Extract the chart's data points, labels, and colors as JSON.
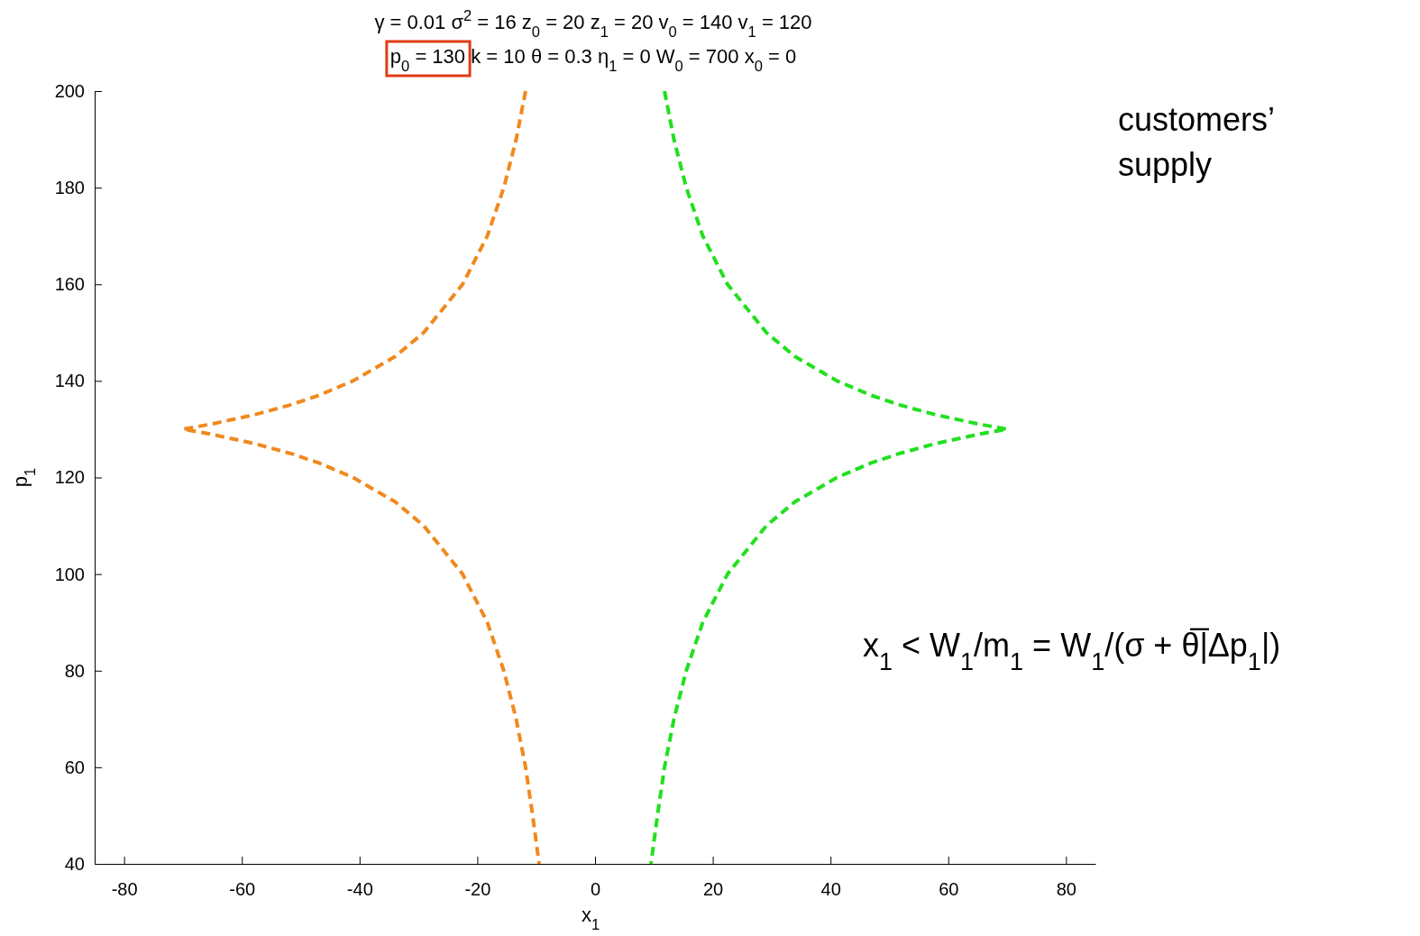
{
  "chart_data": {
    "type": "line",
    "title": "γ = 0.01  σ$^{2}$ = 16  z$_{0}$ = 20  z$_{1}$ = 20  v$_{0}$ = 140  v$_{1}$ = 120",
    "subtitle": "p$_{0}$ = 130  k = 10  θ = 0.3  η$_{1}$ = 0  W$_{0}$ = 700  x$_{0}$ = 0",
    "xlabel": "x$_{1}$",
    "ylabel": "p$_{1}$",
    "annotations": [
      "customers’\nsupply",
      "x$_{1}$ < W$_{1}$/m$_{1}$ = W$_{1}$/(σ + θ̅|Δp$_{1}$|)"
    ],
    "series": [
      {
        "color": "#f0891e",
        "x": [
          -11.8,
          -13.4,
          -15.5,
          -18.3,
          -22.5,
          -29.1,
          -34.0,
          -41.1,
          -46.9,
          -51.8,
          -57.8,
          -65.4,
          -70,
          -65.4,
          -57.8,
          -51.8,
          -46.9,
          -41.1,
          -34.0,
          -29.1,
          -22.5,
          -18.3,
          -15.5,
          -13.4,
          -11.8,
          -10.6,
          -9.5
        ],
        "values": [
          200,
          190,
          180,
          170,
          160,
          150,
          145,
          140,
          137,
          135,
          133,
          131,
          130,
          129,
          127,
          125,
          123,
          120,
          115,
          110,
          100,
          90,
          80,
          70,
          60,
          50,
          40
        ]
      },
      {
        "color": "#22e01e",
        "x": [
          11.8,
          13.4,
          15.5,
          18.3,
          22.5,
          29.1,
          34.0,
          41.1,
          46.9,
          51.8,
          57.8,
          65.4,
          70,
          65.4,
          57.8,
          51.8,
          46.9,
          41.1,
          34.0,
          29.1,
          22.5,
          18.3,
          15.5,
          13.4,
          11.8,
          10.6,
          9.5
        ],
        "values": [
          200,
          190,
          180,
          170,
          160,
          150,
          145,
          140,
          137,
          135,
          133,
          131,
          130,
          129,
          127,
          125,
          123,
          120,
          115,
          110,
          100,
          90,
          80,
          70,
          60,
          50,
          40
        ]
      }
    ],
    "xlim": [
      -85,
      85
    ],
    "xticks": [
      -80,
      -60,
      -40,
      -20,
      0,
      20,
      40,
      60,
      80
    ],
    "ylim": [
      40,
      200
    ],
    "yticks": [
      40,
      60,
      80,
      100,
      120,
      140,
      160,
      180,
      200
    ],
    "line_style": "dashed",
    "marker": "none",
    "grid": false
  }
}
